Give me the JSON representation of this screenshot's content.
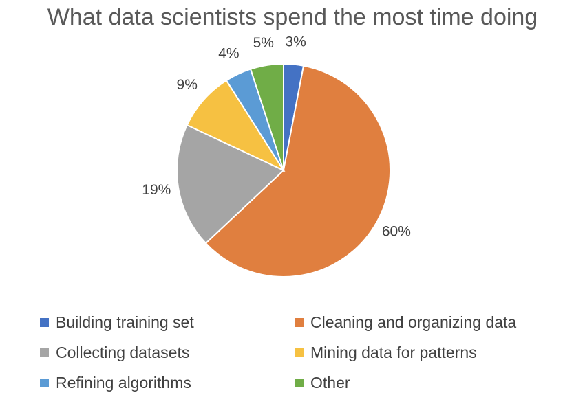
{
  "chart_data": {
    "type": "pie",
    "title": "What data scientists spend the most time doing",
    "legend_position": "bottom",
    "slices": [
      {
        "label": "Building training set",
        "value": 3,
        "value_label": "3%",
        "color": "#4472C4"
      },
      {
        "label": "Cleaning and organizing data",
        "value": 60,
        "value_label": "60%",
        "color": "#E07F3F"
      },
      {
        "label": "Collecting datasets",
        "value": 19,
        "value_label": "19%",
        "color": "#A5A5A5"
      },
      {
        "label": "Mining data for patterns",
        "value": 9,
        "value_label": "9%",
        "color": "#F6C142"
      },
      {
        "label": "Refining algorithms",
        "value": 4,
        "value_label": "4%",
        "color": "#5B9BD5"
      },
      {
        "label": "Other",
        "value": 5,
        "value_label": "5%",
        "color": "#70AD47"
      }
    ]
  }
}
